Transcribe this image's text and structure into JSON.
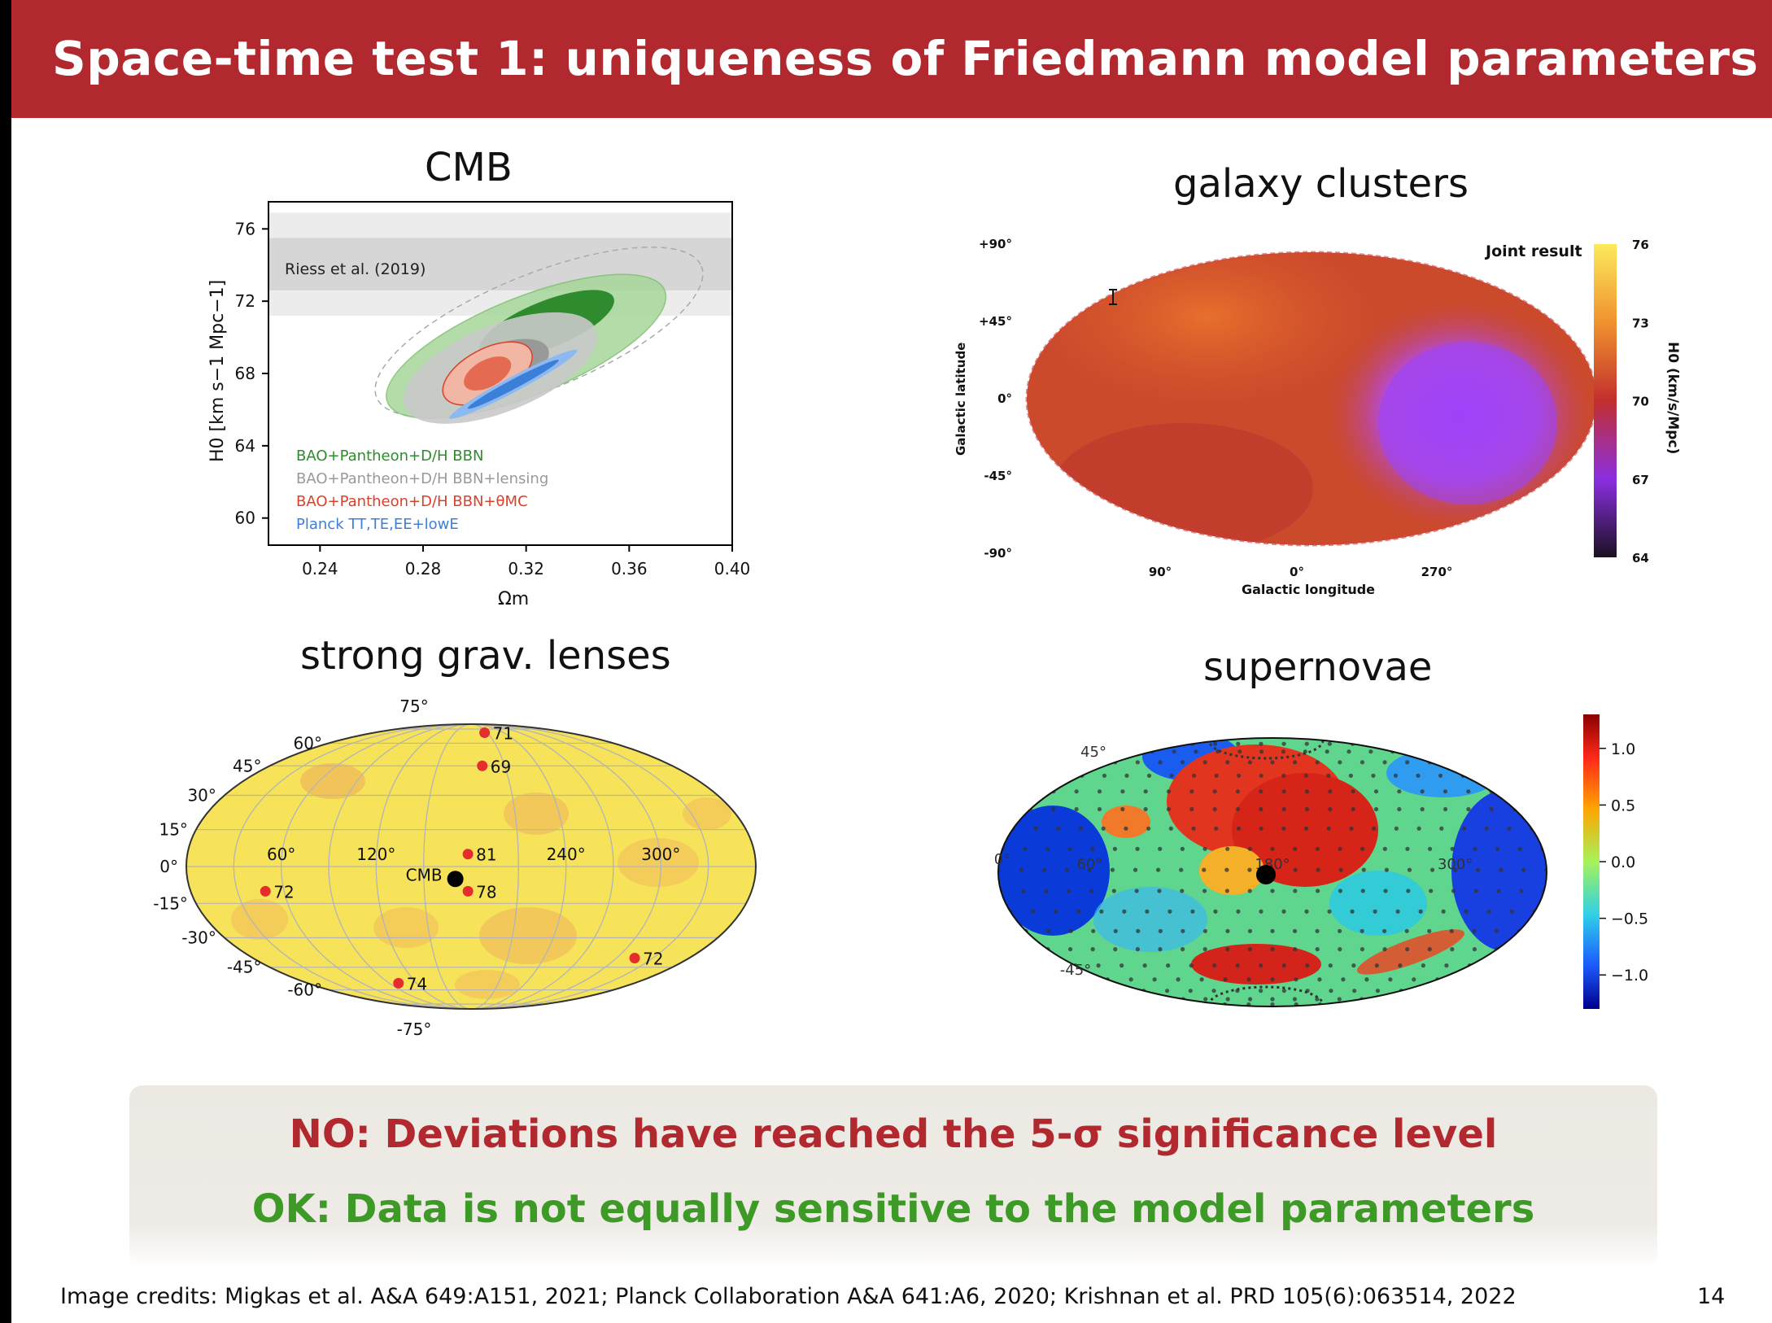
{
  "slide": {
    "title": "Space-time test 1: uniqueness of Friedmann model parameters",
    "page_number": "14",
    "credits": "Image credits: Migkas et al. A&A 649:A151, 2021; Planck Collaboration A&A 641:A6, 2020; Krishnan et al. PRD 105(6):063514, 2022",
    "conclusion_no": "NO: Deviations have reached the 5-σ significance level",
    "conclusion_ok": "OK: Data is not equally sensitive to the model parameters"
  },
  "panels": {
    "cmb_title": "CMB",
    "clusters_title": "galaxy clusters",
    "lenses_title": "strong grav. lenses",
    "supernovae_title": "supernovae"
  },
  "chart_data": [
    {
      "type": "scatter",
      "name_on_slide": "CMB",
      "xlabel": "Ωm",
      "ylabel": "H0 [km s−1 Mpc−1]",
      "xlim": [
        0.22,
        0.4
      ],
      "ylim": [
        58.5,
        77.5
      ],
      "xticks": [
        "0.24",
        "0.28",
        "0.32",
        "0.36",
        "0.40"
      ],
      "yticks": [
        "60",
        "64",
        "68",
        "72",
        "76"
      ],
      "riess_band": {
        "label": "Riess et al. (2019)",
        "center": 74.0,
        "inner": [
          72.6,
          75.5
        ],
        "outer": [
          71.2,
          76.9
        ]
      },
      "legend": [
        {
          "label": "BAO+Pantheon+D/H BBN",
          "color": "#2e8b2e"
        },
        {
          "label": "BAO+Pantheon+D/H BBN+lensing",
          "color": "#999999"
        },
        {
          "label": "BAO+Pantheon+D/H BBN+θMC",
          "color": "#d9412b"
        },
        {
          "label": "Planck TT,TE,EE+lowE",
          "color": "#3b7fd9"
        }
      ],
      "legend_position": "lower-left",
      "contours": [
        {
          "series": "BAO+Pantheon+D/H BBN",
          "center": [
            0.32,
            69.5
          ],
          "color": "#2e8b2e"
        },
        {
          "series": "BAO+Pantheon+D/H BBN+lensing",
          "center": [
            0.31,
            68.3
          ],
          "color": "#999999"
        },
        {
          "series": "BAO+Pantheon+D/H BBN+θMC",
          "center": [
            0.305,
            68.0
          ],
          "color": "#d9412b"
        },
        {
          "series": "Planck TT,TE,EE+lowE",
          "center": [
            0.315,
            67.4
          ],
          "color": "#3b7fd9"
        }
      ]
    },
    {
      "type": "heatmap",
      "name_on_slide": "galaxy clusters",
      "projection": "mollweide",
      "legend_title": "Joint result",
      "colorbar_label": "H0 (km/s/Mpc)",
      "colorbar_ticks": [
        "64",
        "67",
        "70",
        "73",
        "76"
      ],
      "colorbar_range": [
        64,
        76
      ],
      "xlabel": "Galactic longitude",
      "ylabel": "Galactic latitude",
      "lon_ticks": [
        "90°",
        "0°",
        "270°"
      ],
      "lat_ticks": [
        "+90°",
        "+45°",
        "0°",
        "-45°",
        "-90°"
      ]
    },
    {
      "type": "heatmap",
      "name_on_slide": "strong grav. lenses",
      "projection": "mollweide",
      "lon_ticks": [
        "60°",
        "120°",
        "240°",
        "300°"
      ],
      "lat_ticks": [
        "75°",
        "60°",
        "45°",
        "30°",
        "15°",
        "0°",
        "-15°",
        "-30°",
        "-45°",
        "-60°",
        "-75°"
      ],
      "cmb_label": "CMB",
      "lenses": [
        {
          "label": "71",
          "lon": 205,
          "lat": 70
        },
        {
          "label": "69",
          "lon": 190,
          "lat": 45
        },
        {
          "label": "81",
          "lon": 178,
          "lat": 5
        },
        {
          "label": "78",
          "lon": 178,
          "lat": -10
        },
        {
          "label": "72",
          "lon": 48,
          "lat": -10
        },
        {
          "label": "74",
          "lon": 100,
          "lat": -55
        },
        {
          "label": "72",
          "lon": 315,
          "lat": -40
        }
      ],
      "cmb_point": {
        "lon": 170,
        "lat": -5
      }
    },
    {
      "type": "heatmap",
      "name_on_slide": "supernovae",
      "projection": "mollweide",
      "lon_ticks": [
        "60°",
        "180°",
        "300°"
      ],
      "lat_ticks": [
        "45°",
        "0°",
        "-45°"
      ],
      "colorbar_ticks": [
        "1.0",
        "0.5",
        "0.0",
        "−0.5",
        "−1.0"
      ],
      "colorbar_range": [
        -1.3,
        1.3
      ]
    }
  ]
}
